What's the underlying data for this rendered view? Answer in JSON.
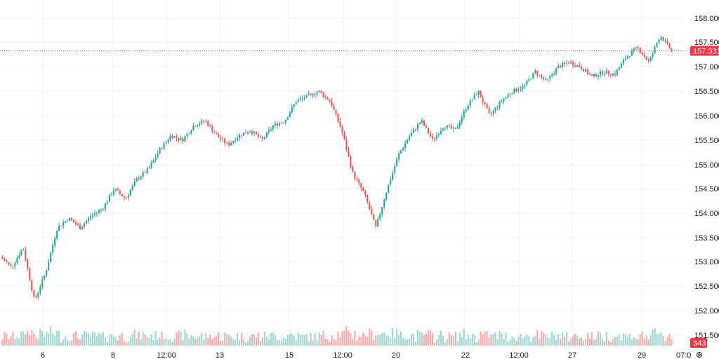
{
  "chart_data": {
    "type": "candlestick",
    "y_axis": {
      "ticks": [
        "151.500",
        "152.000",
        "152.500",
        "153.000",
        "153.500",
        "154.000",
        "154.500",
        "155.000",
        "155.500",
        "156.000",
        "156.500",
        "157.000",
        "157.500",
        "158.000"
      ],
      "range": [
        151.3,
        158.2
      ]
    },
    "x_axis": {
      "ticks": [
        "6",
        "8",
        "12:00",
        "13",
        "15",
        "12:00",
        "20",
        "22",
        "12:00",
        "27",
        "29",
        "07:0"
      ]
    },
    "last_price": "157.331",
    "last_volume": "343",
    "grid": true,
    "colors": {
      "up": "#26a69a",
      "down": "#ef5350",
      "up_volume": "#9fd6cf",
      "down_volume": "#f7a9a7",
      "grid": "#eef0f3",
      "last_price": "#f23645"
    },
    "close_path": [
      153.1,
      152.9,
      153.3,
      152.2,
      152.8,
      153.7,
      153.9,
      153.7,
      153.95,
      154.1,
      154.5,
      154.3,
      154.7,
      154.9,
      155.3,
      155.6,
      155.5,
      155.8,
      155.9,
      155.6,
      155.4,
      155.6,
      155.7,
      155.5,
      155.8,
      155.9,
      156.3,
      156.4,
      156.5,
      156.3,
      155.7,
      154.8,
      154.4,
      153.7,
      154.5,
      155.2,
      155.6,
      155.9,
      155.5,
      155.8,
      155.7,
      156.2,
      156.5,
      156.0,
      156.3,
      156.5,
      156.6,
      156.9,
      156.7,
      157.0,
      157.1,
      157.0,
      156.8,
      156.9,
      156.85,
      157.2,
      157.4,
      157.1,
      157.65,
      157.331
    ]
  },
  "icons": {
    "settings": "gear-icon"
  }
}
